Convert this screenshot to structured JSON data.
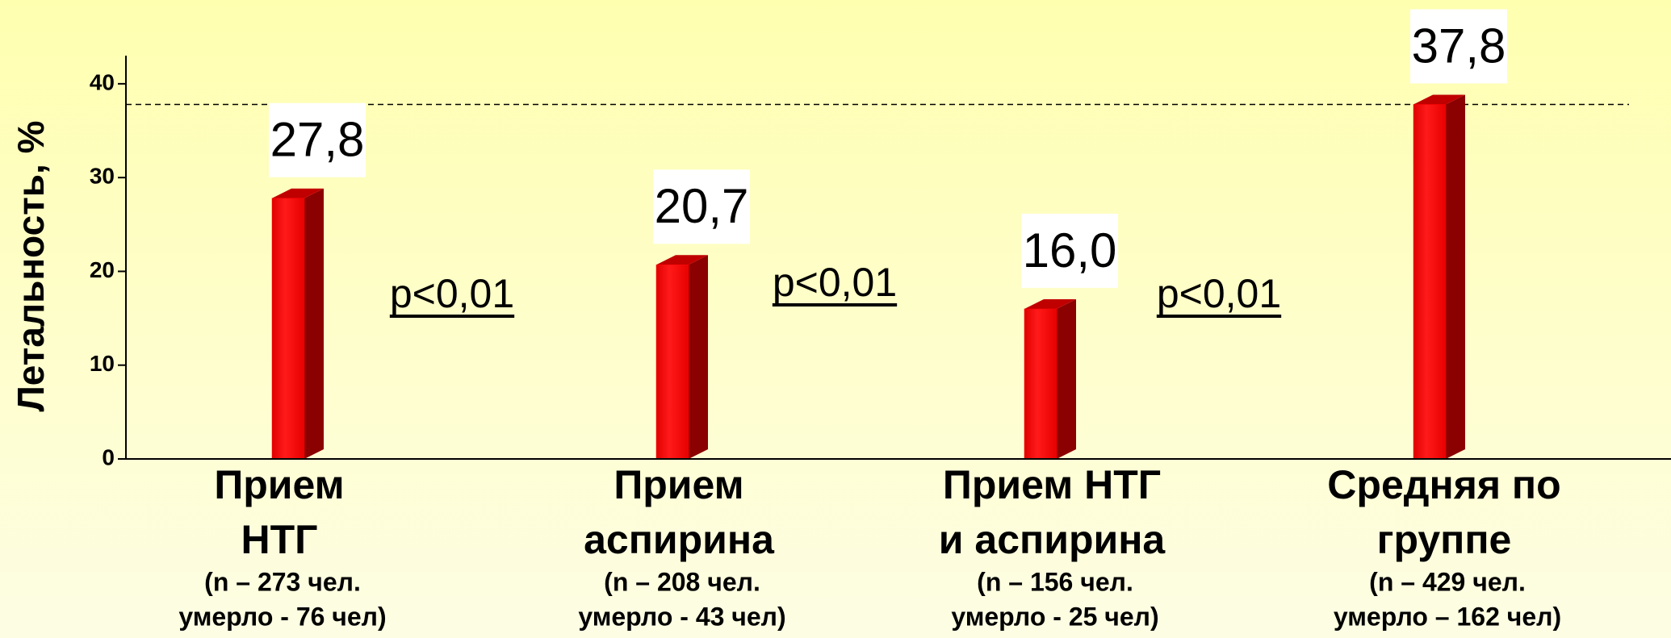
{
  "chart_data": {
    "type": "bar",
    "y_label": "Летальность, %",
    "categories": [
      [
        "Прием",
        "НТГ"
      ],
      [
        "Прием",
        "аспирина"
      ],
      [
        "Прием НТГ",
        "и аспирина"
      ],
      [
        "Средняя по",
        "группе"
      ]
    ],
    "category_notes": [
      [
        "(n – 273 чел.",
        "умерло - 76 чел)"
      ],
      [
        "(n – 208 чел.",
        "умерло - 43 чел)"
      ],
      [
        "(n – 156 чел.",
        "умерло - 25 чел)"
      ],
      [
        "(n – 429 чел.",
        "умерло – 162 чел)"
      ]
    ],
    "values": [
      27.8,
      20.7,
      16.0,
      37.8
    ],
    "value_labels": [
      "27,8",
      "20,7",
      "16,0",
      "37,8"
    ],
    "color": "#ff0000",
    "reference_line": 37.8,
    "annotations": [
      "p<0,01",
      "p<0,01",
      "p<0,01"
    ],
    "ylim": [
      0,
      43
    ],
    "yticks": [
      0,
      10,
      20,
      30,
      40
    ],
    "grid": false
  }
}
